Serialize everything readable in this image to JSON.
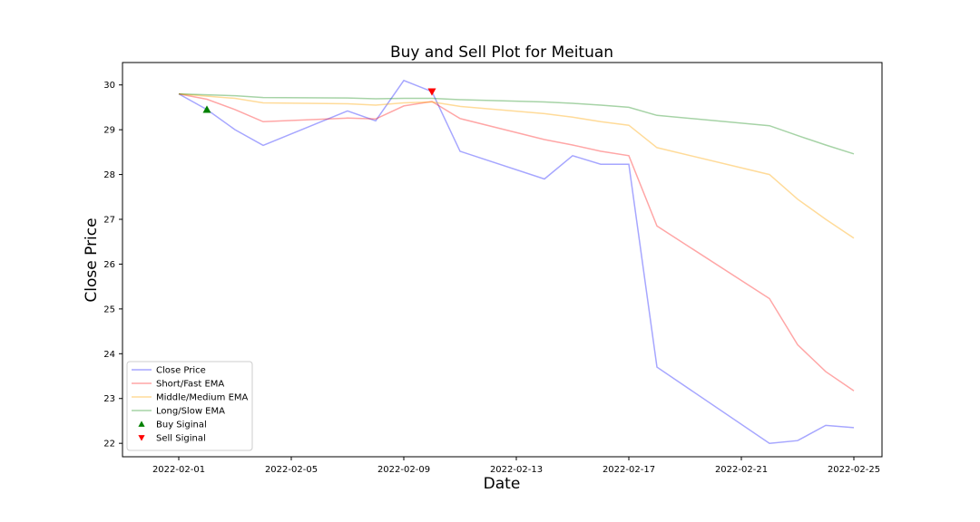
{
  "chart_data": {
    "type": "line",
    "title": "Buy and Sell Plot for Meituan",
    "xlabel": "Date",
    "ylabel": "Close Price",
    "x_range": [
      "2022-01-30",
      "2022-02-26"
    ],
    "ylim": [
      21.7,
      30.5
    ],
    "x_ticks": [
      "2022-02-01",
      "2022-02-05",
      "2022-02-09",
      "2022-02-13",
      "2022-02-17",
      "2022-02-21",
      "2022-02-25"
    ],
    "y_ticks": [
      22,
      23,
      24,
      25,
      26,
      27,
      28,
      29,
      30
    ],
    "grid": false,
    "legend_position": "lower-left",
    "series": [
      {
        "name": "Close Price",
        "color": "#0000ff",
        "opacity": 0.35,
        "points": [
          [
            "2022-02-01",
            29.8
          ],
          [
            "2022-02-02",
            29.45
          ],
          [
            "2022-02-03",
            29.0
          ],
          [
            "2022-02-04",
            28.65
          ],
          [
            "2022-02-07",
            29.42
          ],
          [
            "2022-02-08",
            29.2
          ],
          [
            "2022-02-09",
            30.1
          ],
          [
            "2022-02-10",
            29.85
          ],
          [
            "2022-02-11",
            28.52
          ],
          [
            "2022-02-14",
            27.9
          ],
          [
            "2022-02-15",
            28.42
          ],
          [
            "2022-02-16",
            28.23
          ],
          [
            "2022-02-17",
            28.23
          ],
          [
            "2022-02-18",
            23.7
          ],
          [
            "2022-02-22",
            22.0
          ],
          [
            "2022-02-23",
            22.06
          ],
          [
            "2022-02-24",
            22.4
          ],
          [
            "2022-02-25",
            22.35
          ]
        ]
      },
      {
        "name": "Short/Fast EMA",
        "color": "#ff0000",
        "opacity": 0.35,
        "points": [
          [
            "2022-02-01",
            29.8
          ],
          [
            "2022-02-02",
            29.68
          ],
          [
            "2022-02-03",
            29.45
          ],
          [
            "2022-02-04",
            29.18
          ],
          [
            "2022-02-07",
            29.26
          ],
          [
            "2022-02-08",
            29.24
          ],
          [
            "2022-02-09",
            29.53
          ],
          [
            "2022-02-10",
            29.63
          ],
          [
            "2022-02-11",
            29.25
          ],
          [
            "2022-02-14",
            28.78
          ],
          [
            "2022-02-15",
            28.66
          ],
          [
            "2022-02-16",
            28.52
          ],
          [
            "2022-02-17",
            28.42
          ],
          [
            "2022-02-18",
            26.85
          ],
          [
            "2022-02-22",
            25.23
          ],
          [
            "2022-02-23",
            24.2
          ],
          [
            "2022-02-24",
            23.6
          ],
          [
            "2022-02-25",
            23.17
          ]
        ]
      },
      {
        "name": "Middle/Medium EMA",
        "color": "#ffa500",
        "opacity": 0.4,
        "points": [
          [
            "2022-02-01",
            29.8
          ],
          [
            "2022-02-02",
            29.75
          ],
          [
            "2022-02-03",
            29.7
          ],
          [
            "2022-02-04",
            29.6
          ],
          [
            "2022-02-07",
            29.58
          ],
          [
            "2022-02-08",
            29.55
          ],
          [
            "2022-02-09",
            29.6
          ],
          [
            "2022-02-10",
            29.62
          ],
          [
            "2022-02-11",
            29.52
          ],
          [
            "2022-02-14",
            29.36
          ],
          [
            "2022-02-15",
            29.28
          ],
          [
            "2022-02-16",
            29.18
          ],
          [
            "2022-02-17",
            29.1
          ],
          [
            "2022-02-18",
            28.6
          ],
          [
            "2022-02-22",
            28.0
          ],
          [
            "2022-02-23",
            27.45
          ],
          [
            "2022-02-24",
            27.0
          ],
          [
            "2022-02-25",
            26.58
          ]
        ]
      },
      {
        "name": "Long/Slow EMA",
        "color": "#008000",
        "opacity": 0.35,
        "points": [
          [
            "2022-02-01",
            29.8
          ],
          [
            "2022-02-02",
            29.78
          ],
          [
            "2022-02-03",
            29.76
          ],
          [
            "2022-02-04",
            29.72
          ],
          [
            "2022-02-07",
            29.71
          ],
          [
            "2022-02-08",
            29.69
          ],
          [
            "2022-02-09",
            29.7
          ],
          [
            "2022-02-10",
            29.7
          ],
          [
            "2022-02-11",
            29.67
          ],
          [
            "2022-02-14",
            29.62
          ],
          [
            "2022-02-15",
            29.59
          ],
          [
            "2022-02-16",
            29.55
          ],
          [
            "2022-02-17",
            29.5
          ],
          [
            "2022-02-18",
            29.32
          ],
          [
            "2022-02-22",
            29.09
          ],
          [
            "2022-02-23",
            28.87
          ],
          [
            "2022-02-24",
            28.66
          ],
          [
            "2022-02-25",
            28.46
          ]
        ]
      }
    ],
    "markers": [
      {
        "name": "Buy Siginal",
        "symbol": "triangle-up",
        "color": "#008000",
        "points": [
          [
            "2022-02-02",
            29.45
          ]
        ]
      },
      {
        "name": "Sell Siginal",
        "symbol": "triangle-down",
        "color": "#ff0000",
        "points": [
          [
            "2022-02-10",
            29.85
          ]
        ]
      }
    ]
  }
}
